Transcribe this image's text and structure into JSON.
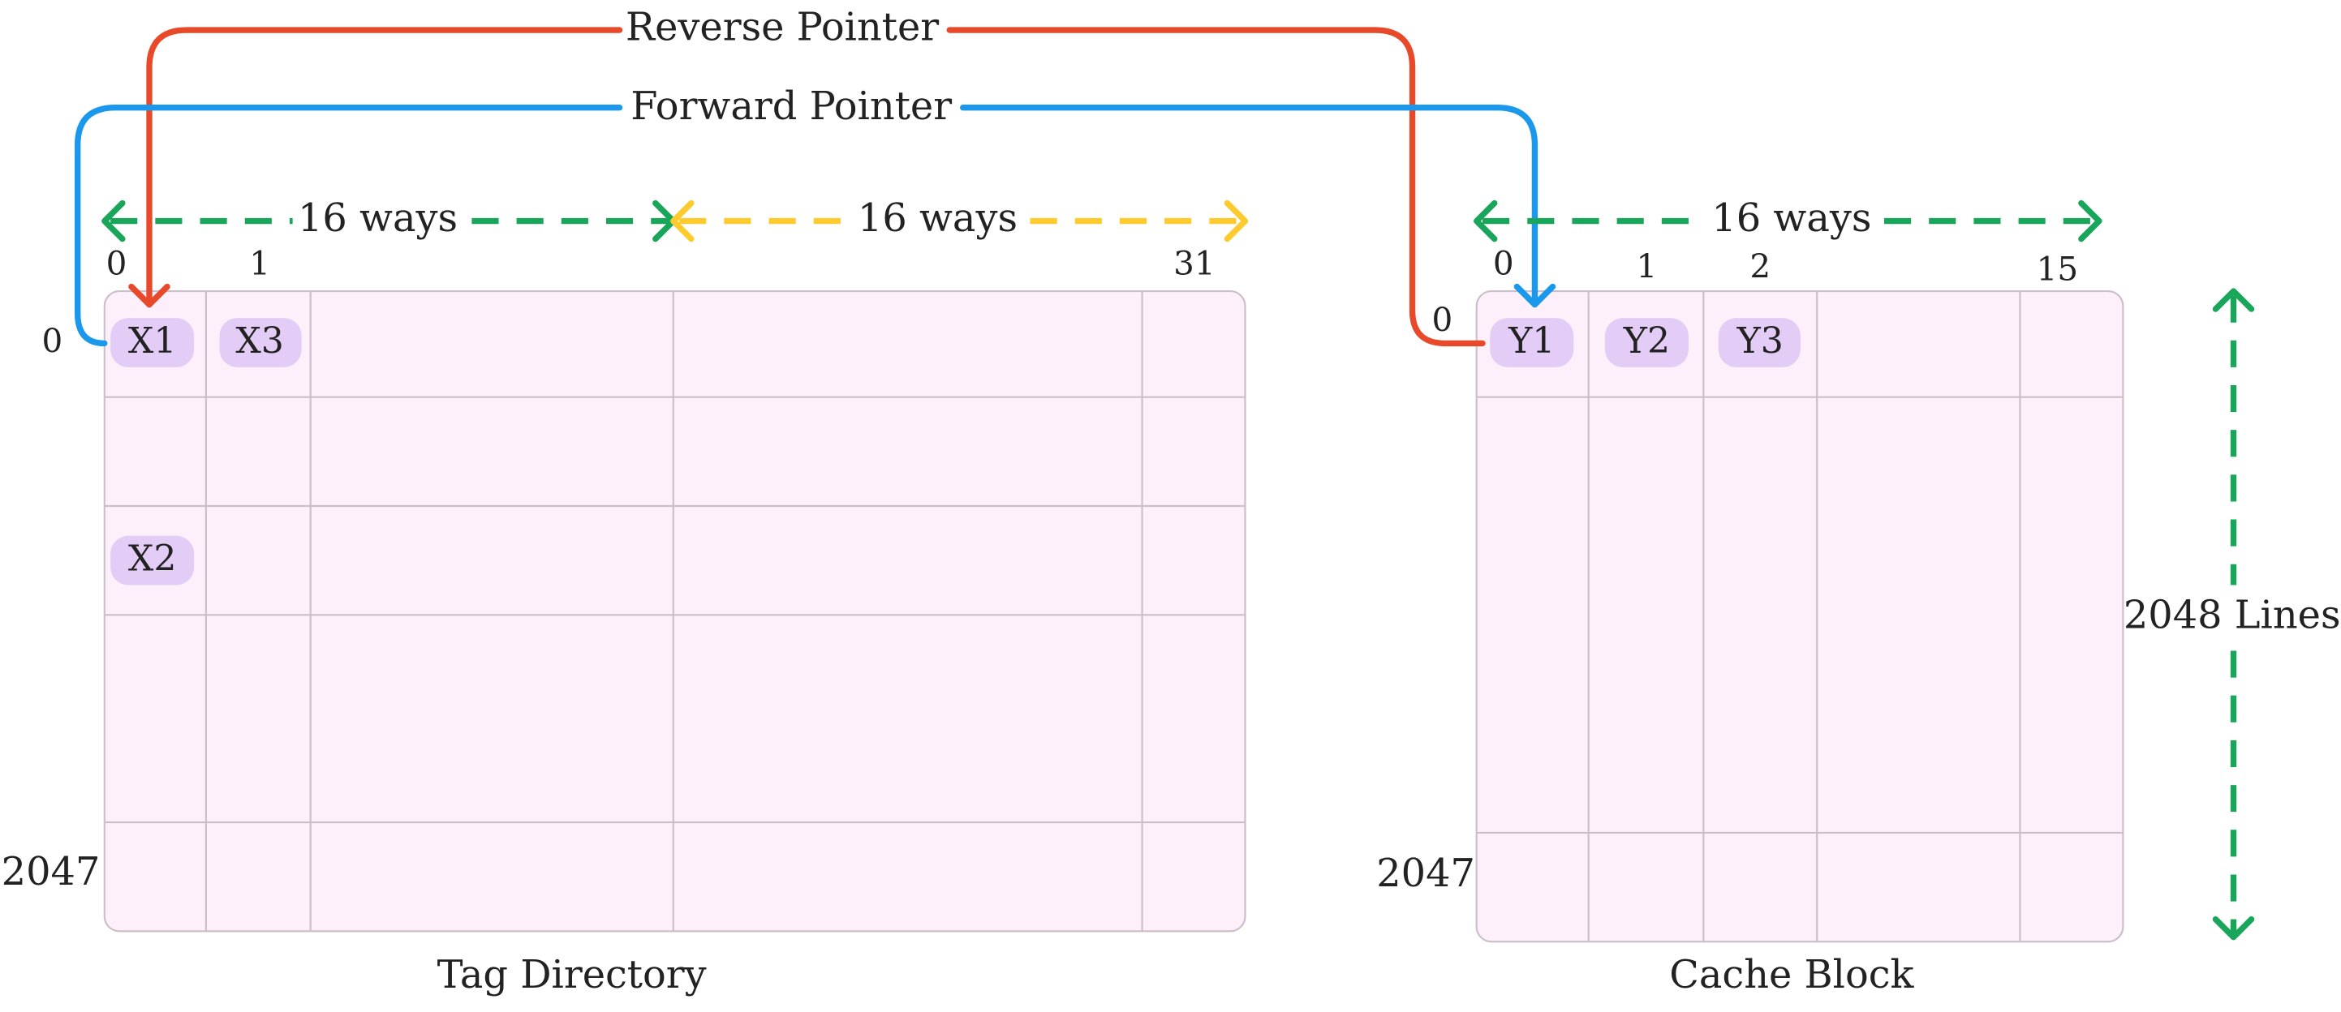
{
  "pointers": {
    "reverse": "Reverse Pointer",
    "forward": "Forward Pointer"
  },
  "tag_directory": {
    "title": "Tag Directory",
    "ways_left": "16 ways",
    "ways_right": "16  ways",
    "col_labels": [
      "0",
      "1",
      "31"
    ],
    "row_labels": [
      "0",
      "2047"
    ],
    "entries": [
      "X1",
      "X3",
      "X2"
    ]
  },
  "cache_block": {
    "title": "Cache Block",
    "ways": "16  ways",
    "col_labels": [
      "0",
      "1",
      "2",
      "15"
    ],
    "row_labels": [
      "0",
      "2047"
    ],
    "entries": [
      "Y1",
      "Y2",
      "Y3"
    ],
    "lines": "2048 Lines"
  }
}
